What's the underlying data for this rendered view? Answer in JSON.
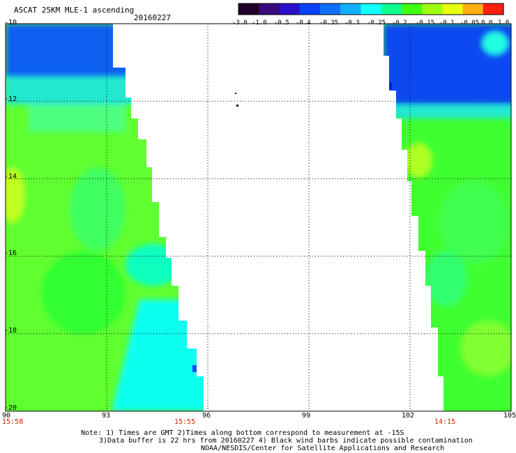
{
  "title": "ASCAT 25KM MLE-1 ascending",
  "date": "20160227",
  "colorbar": {
    "labels": [
      "-3.0",
      "-1.0",
      "-0.5",
      "-0.4",
      "-0.35",
      "-0.3",
      "-0.25",
      "-0.2",
      "-0.15",
      "-0.1",
      "-0.05",
      "0.0",
      "1.0"
    ],
    "colors": [
      "#20002a",
      "#3a0a7a",
      "#2a10c8",
      "#0a40ff",
      "#1070ff",
      "#10b0ff",
      "#10ffff",
      "#10ff90",
      "#40ff10",
      "#a0ff10",
      "#e8ff10",
      "#ffb010",
      "#ff2010"
    ]
  },
  "map": {
    "lat_labels": [
      "-10",
      "-12",
      "-14",
      "-16",
      "-18",
      "-20"
    ],
    "lon_labels": [
      "90",
      "93",
      "96",
      "99",
      "102",
      "105"
    ],
    "lat_range": [
      -20,
      -10
    ],
    "lon_range": [
      90,
      105
    ],
    "grid": "dotted",
    "time_labels": [
      "15:58",
      "15:55",
      "14:15"
    ]
  },
  "notes": {
    "line1": "Note: 1) Times are GMT 2)Times along bottom correspond to measurement at -15S",
    "line2": "3)Data buffer is 22 hrs from 20160227 4) Black wind barbs indicate possible contamination",
    "line3": "NOAA/NESDIS/Center for Satellite Applications and Research"
  },
  "colors": {
    "blue": "#0a50f0",
    "cyan": "#10ffe8",
    "green": "#40ff20",
    "time": "#cc2200"
  }
}
